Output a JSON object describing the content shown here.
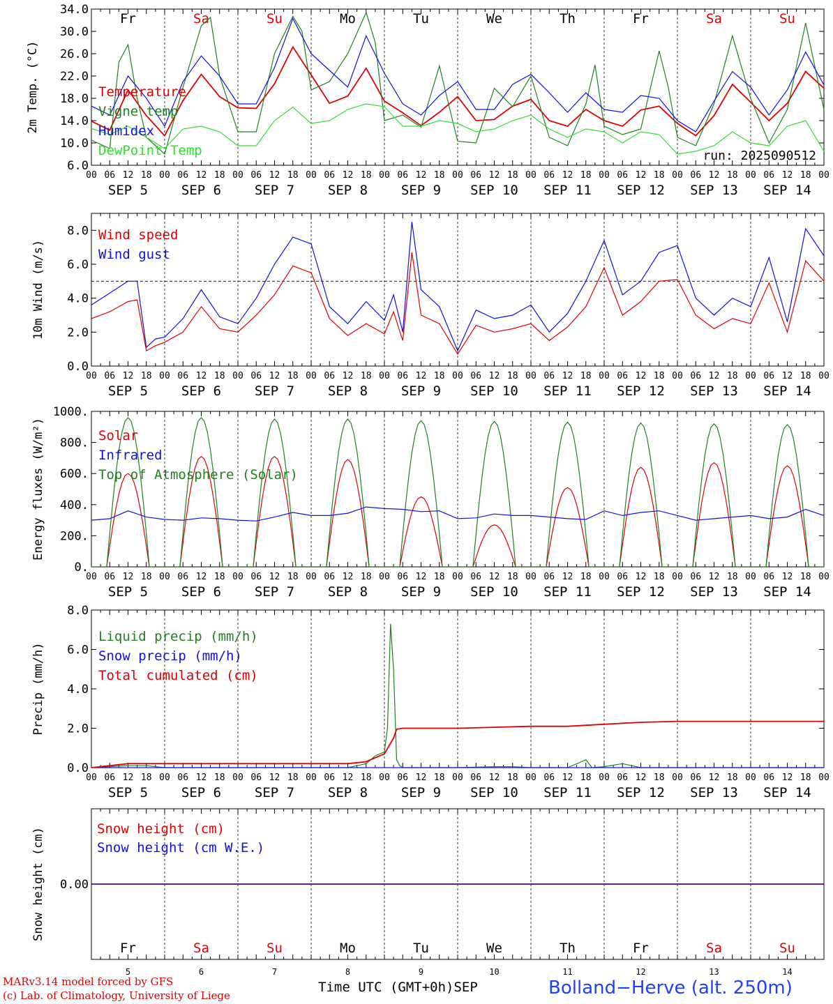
{
  "run_label": "run: 2025090512",
  "credits": [
    "MARv3.14 model forced by GFS",
    "(c) Lab. of Climatology, University of Liege"
  ],
  "station": "Bolland−Herve (alt. 250m)",
  "x_axis_title": "Time UTC (GMT+0h)",
  "month_label": "SEP",
  "weekend_color": "#e00000",
  "days": [
    {
      "abbr": "Fr",
      "date": "5",
      "weekend": false
    },
    {
      "abbr": "Sa",
      "date": "6",
      "weekend": true
    },
    {
      "abbr": "Su",
      "date": "7",
      "weekend": true
    },
    {
      "abbr": "Mo",
      "date": "8",
      "weekend": false
    },
    {
      "abbr": "Tu",
      "date": "9",
      "weekend": false
    },
    {
      "abbr": "We",
      "date": "10",
      "weekend": false
    },
    {
      "abbr": "Th",
      "date": "11",
      "weekend": false
    },
    {
      "abbr": "Fr",
      "date": "12",
      "weekend": false
    },
    {
      "abbr": "Sa",
      "date": "13",
      "weekend": true
    },
    {
      "abbr": "Su",
      "date": "14",
      "weekend": true
    }
  ],
  "hour_labels": [
    "00",
    "06",
    "12",
    "18"
  ],
  "chart_data": [
    {
      "type": "line",
      "id": "temperature",
      "ylabel": "2m Temp. (°C)",
      "ylim": [
        6.0,
        34.0
      ],
      "yticks": [
        "6.0",
        "10.0",
        "14.0",
        "18.0",
        "22.0",
        "26.0",
        "30.0",
        "34.0"
      ],
      "ytick_values": [
        6,
        10,
        14,
        18,
        22,
        26,
        30,
        34
      ],
      "x_hours_start": 0,
      "x_hours_end": 240,
      "series": [
        {
          "name": "Temperature",
          "color": "#e00000",
          "x": [
            0,
            6,
            12,
            18,
            24,
            30,
            36,
            42,
            48,
            54,
            60,
            66,
            72,
            78,
            84,
            90,
            96,
            102,
            108,
            114,
            120,
            126,
            132,
            138,
            144,
            150,
            156,
            162,
            168,
            174,
            180,
            186,
            192,
            198,
            204,
            210,
            216,
            222,
            228,
            234,
            240
          ],
          "y": [
            13.9,
            12.3,
            19.5,
            14.9,
            11.3,
            17.6,
            22.3,
            18.3,
            16.3,
            16.2,
            20.6,
            27.2,
            22.2,
            17.1,
            18.4,
            23.4,
            17.5,
            15.4,
            13.1,
            15.5,
            18.3,
            14.0,
            14.2,
            16.6,
            17.8,
            14.0,
            13.0,
            16.0,
            14.0,
            13.0,
            15.9,
            16.6,
            13.5,
            11.3,
            14.9,
            20.5,
            17.3,
            14.0,
            17.1,
            22.8,
            19.8
          ]
        },
        {
          "name": "Vigne temp",
          "color": "#208020",
          "x": [
            0,
            6,
            9,
            12,
            15,
            18,
            24,
            30,
            36,
            39,
            42,
            48,
            54,
            60,
            66,
            69,
            72,
            78,
            84,
            90,
            93,
            96,
            102,
            108,
            114,
            117,
            120,
            126,
            132,
            138,
            144,
            150,
            156,
            162,
            165,
            168,
            174,
            180,
            186,
            189,
            192,
            198,
            204,
            210,
            216,
            222,
            228,
            234,
            240
          ],
          "y": [
            10.5,
            9.0,
            24.5,
            27.6,
            18.0,
            11.0,
            8.0,
            20.0,
            31.0,
            32.5,
            22.0,
            12.0,
            12.0,
            26.0,
            32.7,
            30.0,
            19.5,
            21.0,
            26.0,
            33.4,
            28.0,
            14.0,
            15.0,
            12.8,
            23.8,
            17.0,
            10.3,
            10.0,
            19.8,
            16.5,
            22.0,
            11.0,
            9.5,
            17.0,
            24.0,
            13.0,
            11.5,
            12.5,
            26.5,
            20.0,
            11.0,
            9.5,
            17.0,
            29.2,
            18.0,
            10.0,
            16.0,
            31.5,
            16.0
          ]
        },
        {
          "name": "Humidex",
          "color": "#1010e0",
          "x": [
            0,
            6,
            12,
            18,
            24,
            30,
            36,
            42,
            48,
            54,
            60,
            66,
            72,
            78,
            84,
            90,
            96,
            102,
            108,
            114,
            120,
            126,
            132,
            138,
            144,
            150,
            156,
            162,
            168,
            174,
            180,
            186,
            192,
            198,
            204,
            210,
            216,
            222,
            228,
            234,
            240
          ],
          "y": [
            16.6,
            15.0,
            22.0,
            18.0,
            13.0,
            21.0,
            25.6,
            22.0,
            17.0,
            17.0,
            23.5,
            32.3,
            26.0,
            23.0,
            20.0,
            29.2,
            22.5,
            17.0,
            15.0,
            18.5,
            21.0,
            16.0,
            16.0,
            20.5,
            22.3,
            19.0,
            15.5,
            19.0,
            16.0,
            15.5,
            18.5,
            18.0,
            14.0,
            12.0,
            17.5,
            22.8,
            20.0,
            15.0,
            19.5,
            26.3,
            20.4
          ]
        },
        {
          "name": "DewPoint Temp",
          "color": "#30e030",
          "x": [
            0,
            6,
            12,
            18,
            24,
            30,
            36,
            42,
            48,
            54,
            60,
            66,
            72,
            78,
            84,
            90,
            96,
            102,
            108,
            114,
            120,
            126,
            132,
            138,
            144,
            150,
            156,
            162,
            168,
            174,
            180,
            186,
            192,
            198,
            204,
            210,
            216,
            222,
            228,
            234,
            240
          ],
          "y": [
            12.6,
            11.5,
            13.0,
            11.0,
            9.0,
            12.5,
            13.0,
            12.0,
            9.5,
            9.5,
            14.0,
            16.4,
            13.5,
            14.0,
            16.0,
            17.0,
            16.5,
            13.0,
            13.0,
            14.0,
            13.5,
            12.0,
            12.5,
            14.0,
            15.0,
            12.5,
            11.0,
            12.5,
            12.0,
            10.0,
            12.0,
            11.5,
            8.0,
            8.5,
            9.5,
            12.0,
            10.0,
            9.5,
            13.0,
            14.0,
            8.5
          ]
        }
      ]
    },
    {
      "type": "line",
      "id": "wind",
      "ylabel": "10m Wind (m/s)",
      "ylim": [
        0.0,
        9.0
      ],
      "yticks": [
        "0.0",
        "2.0",
        "4.0",
        "6.0",
        "8.0"
      ],
      "ytick_values": [
        0,
        2,
        4,
        6,
        8
      ],
      "reference_line": 5.0,
      "series": [
        {
          "name": "Wind speed",
          "color": "#e00000",
          "x": [
            0,
            6,
            12,
            15,
            18,
            21,
            24,
            30,
            36,
            42,
            48,
            54,
            60,
            66,
            72,
            78,
            84,
            90,
            96,
            99,
            102,
            105,
            108,
            114,
            120,
            126,
            132,
            138,
            144,
            150,
            156,
            162,
            168,
            174,
            180,
            186,
            192,
            198,
            204,
            210,
            216,
            222,
            228,
            234,
            240
          ],
          "y": [
            2.8,
            3.2,
            3.8,
            3.9,
            0.9,
            1.2,
            1.4,
            2.0,
            3.5,
            2.2,
            2.0,
            3.0,
            4.2,
            5.9,
            5.5,
            2.8,
            1.8,
            2.5,
            1.9,
            3.2,
            1.5,
            6.7,
            3.0,
            2.5,
            0.7,
            2.4,
            2.0,
            2.2,
            2.5,
            1.5,
            2.3,
            3.5,
            5.8,
            3.0,
            3.8,
            5.0,
            5.1,
            3.0,
            2.2,
            2.8,
            2.5,
            4.9,
            2.0,
            6.2,
            5.0
          ]
        },
        {
          "name": "Wind gust",
          "color": "#1010e0",
          "x": [
            0,
            6,
            12,
            15,
            18,
            21,
            24,
            30,
            36,
            42,
            48,
            54,
            60,
            66,
            72,
            78,
            84,
            90,
            96,
            99,
            102,
            105,
            108,
            114,
            120,
            126,
            132,
            138,
            144,
            150,
            156,
            162,
            168,
            174,
            180,
            186,
            192,
            198,
            204,
            210,
            216,
            222,
            228,
            234,
            240
          ],
          "y": [
            3.6,
            4.3,
            5.0,
            5.0,
            1.1,
            1.6,
            1.7,
            2.8,
            4.5,
            2.9,
            2.5,
            4.0,
            6.0,
            7.6,
            7.2,
            3.5,
            2.5,
            3.8,
            2.7,
            4.2,
            2.0,
            8.5,
            4.5,
            3.5,
            0.9,
            3.3,
            2.8,
            3.0,
            3.6,
            2.0,
            3.1,
            5.0,
            7.4,
            4.2,
            5.0,
            6.7,
            7.1,
            4.0,
            3.0,
            4.0,
            3.5,
            6.4,
            2.6,
            8.1,
            6.5
          ]
        }
      ]
    },
    {
      "type": "line",
      "id": "energy",
      "ylabel": "Energy fluxes (W/m²)",
      "ylim": [
        0,
        1000
      ],
      "yticks": [
        "0.",
        "200.",
        "400.",
        "600.",
        "800.",
        "1000."
      ],
      "ytick_values": [
        0,
        200,
        400,
        600,
        800,
        1000
      ],
      "daily_peak_series": [
        {
          "name": "Solar",
          "color": "#e00000",
          "peaks": [
            600,
            710,
            710,
            690,
            450,
            270,
            510,
            640,
            670,
            650
          ]
        },
        {
          "name": "Top of Atmosphere (Solar)",
          "color": "#208020",
          "peaks": [
            960,
            960,
            950,
            950,
            940,
            935,
            930,
            925,
            920,
            915
          ]
        }
      ],
      "series": [
        {
          "name": "Infrared",
          "color": "#1010e0",
          "x": [
            0,
            6,
            12,
            18,
            24,
            30,
            36,
            42,
            48,
            54,
            60,
            66,
            72,
            78,
            84,
            90,
            96,
            102,
            108,
            114,
            120,
            126,
            132,
            138,
            144,
            150,
            156,
            162,
            168,
            174,
            180,
            186,
            192,
            198,
            204,
            210,
            216,
            222,
            228,
            234,
            240
          ],
          "y": [
            300,
            310,
            360,
            320,
            305,
            300,
            315,
            310,
            300,
            295,
            320,
            350,
            330,
            330,
            345,
            385,
            375,
            370,
            355,
            360,
            310,
            315,
            340,
            330,
            330,
            320,
            310,
            305,
            360,
            330,
            350,
            360,
            330,
            300,
            310,
            320,
            330,
            310,
            320,
            370,
            330
          ]
        }
      ]
    },
    {
      "type": "line",
      "id": "precip",
      "ylabel": "Precip (mm/h)",
      "ylim": [
        0.0,
        8.0
      ],
      "yticks": [
        "0.0",
        "2.0",
        "4.0",
        "6.0",
        "8.0"
      ],
      "ytick_values": [
        0,
        2,
        4,
        6,
        8
      ],
      "series": [
        {
          "name": "Liquid precip (mm/h)",
          "color": "#208020",
          "x": [
            0,
            12,
            18,
            24,
            60,
            84,
            90,
            93,
            96,
            97,
            98,
            99,
            100,
            101,
            102,
            120,
            132,
            138,
            144,
            156,
            162,
            164,
            168,
            174,
            180,
            186,
            192,
            240
          ],
          "y": [
            0,
            0.1,
            0.1,
            0,
            0,
            0,
            0.2,
            0.6,
            0.8,
            2.0,
            7.3,
            5.0,
            0.4,
            0.1,
            0,
            0,
            0.05,
            0.05,
            0,
            0,
            0.4,
            0,
            0.05,
            0.2,
            0,
            0,
            0,
            0
          ]
        },
        {
          "name": "Snow precip (mm/h)",
          "color": "#1010e0",
          "x": [
            0,
            240
          ],
          "y": [
            0,
            0
          ]
        },
        {
          "name": "Total cumulated (cm)",
          "color": "#e00000",
          "x": [
            0,
            6,
            12,
            24,
            84,
            90,
            96,
            99,
            100,
            102,
            120,
            132,
            144,
            156,
            168,
            180,
            192,
            204,
            216,
            228,
            240
          ],
          "y": [
            0,
            0.1,
            0.2,
            0.2,
            0.2,
            0.3,
            0.7,
            1.5,
            1.95,
            2.0,
            2.0,
            2.05,
            2.1,
            2.1,
            2.2,
            2.3,
            2.35,
            2.35,
            2.35,
            2.35,
            2.35
          ]
        }
      ]
    },
    {
      "type": "line",
      "id": "snow",
      "ylabel": "Snow height (cm)",
      "ylim": [
        -1,
        1
      ],
      "yticks": [
        "0.00"
      ],
      "ytick_values": [
        0
      ],
      "series": [
        {
          "name": "Snow height (cm)",
          "color": "#e00000",
          "x": [
            0,
            240
          ],
          "y": [
            0,
            0
          ]
        },
        {
          "name": "Snow height (cm W.E.)",
          "color": "#1010e0",
          "x": [
            0,
            240
          ],
          "y": [
            0,
            0
          ]
        }
      ]
    }
  ]
}
